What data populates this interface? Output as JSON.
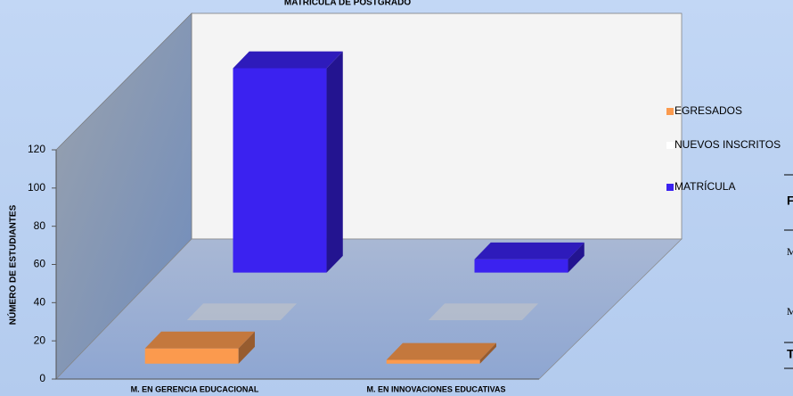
{
  "chart_data": {
    "type": "bar3d",
    "title": "MATRÍCULA DE POSTGRADO",
    "y_label": "NÚMERO DE ESTUDIANTES",
    "categories": [
      "M. EN GERENCIA EDUCACIONAL",
      "M. EN INNOVACIONES EDUCATIVAS"
    ],
    "series": [
      {
        "name": "EGRESADOS",
        "color": "#fb9a4e",
        "values": [
          8,
          2
        ]
      },
      {
        "name": "NUEVOS INSCRITOS",
        "color": "#ffffff",
        "values": [
          0,
          0
        ]
      },
      {
        "name": "MATRÍCULA",
        "color": "#3b22f0",
        "values": [
          107,
          7
        ]
      }
    ],
    "ylim": [
      0,
      120
    ],
    "yticks": [
      0,
      20,
      40,
      60,
      80,
      100,
      120
    ],
    "legend": "right"
  },
  "background_text": [
    "F",
    "M",
    "M",
    "T"
  ]
}
